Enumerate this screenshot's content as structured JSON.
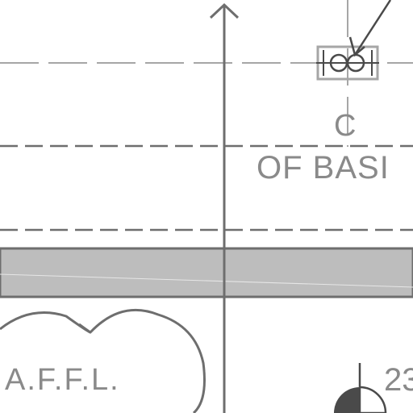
{
  "labels": {
    "centerline_symbol": "C",
    "basin_note": "OF BASI",
    "cloud_note": "A.F.F.L.",
    "dimension_value": "23"
  },
  "colors": {
    "background": "#ffffff",
    "line_dark": "#6e6e6e",
    "line_light": "#a6a6a6",
    "band_fill": "#bdbdbd",
    "text": "#8a8a8a",
    "marker_fill": "#4a4a4a"
  },
  "icons": {
    "fixture_symbol": "double-circle-fixture-icon",
    "leader_arrow": "leader-arrow-icon",
    "axis_arrowhead": "arrowhead-up-icon",
    "elevation_marker": "quadrant-elevation-marker-icon"
  }
}
